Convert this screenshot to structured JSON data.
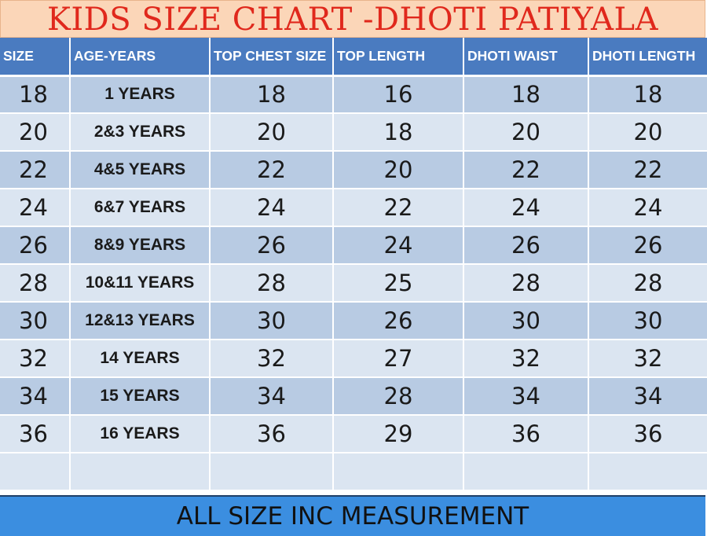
{
  "title": "KIDS SIZE CHART -DHOTI PATIYALA",
  "table": {
    "headers": [
      "SIZE",
      "AGE-YEARS",
      "TOP CHEST SIZE",
      "TOP LENGTH",
      "DHOTI WAIST",
      "DHOTI LENGTH"
    ],
    "rows": [
      [
        "18",
        "1 YEARS",
        "18",
        "16",
        "18",
        "18"
      ],
      [
        "20",
        "2&3 YEARS",
        "20",
        "18",
        "20",
        "20"
      ],
      [
        "22",
        "4&5 YEARS",
        "22",
        "20",
        "22",
        "22"
      ],
      [
        "24",
        "6&7 YEARS",
        "24",
        "22",
        "24",
        "24"
      ],
      [
        "26",
        "8&9 YEARS",
        "26",
        "24",
        "26",
        "26"
      ],
      [
        "28",
        "10&11 YEARS",
        "28",
        "25",
        "28",
        "28"
      ],
      [
        "30",
        "12&13 YEARS",
        "30",
        "26",
        "30",
        "30"
      ],
      [
        "32",
        "14 YEARS",
        "32",
        "27",
        "32",
        "32"
      ],
      [
        "34",
        "15 YEARS",
        "34",
        "28",
        "34",
        "34"
      ],
      [
        "36",
        "16 YEARS",
        "36",
        "29",
        "36",
        "36"
      ]
    ]
  },
  "footer": "ALL SIZE INC MEASUREMENT",
  "colors": {
    "title_background": "#fbd6b8",
    "title_text": "#e0281c",
    "header_background": "#4a7bc0",
    "row_dark": "#b8cbe3",
    "row_light": "#dbe5f1",
    "footer_background": "#3b8ee0"
  }
}
